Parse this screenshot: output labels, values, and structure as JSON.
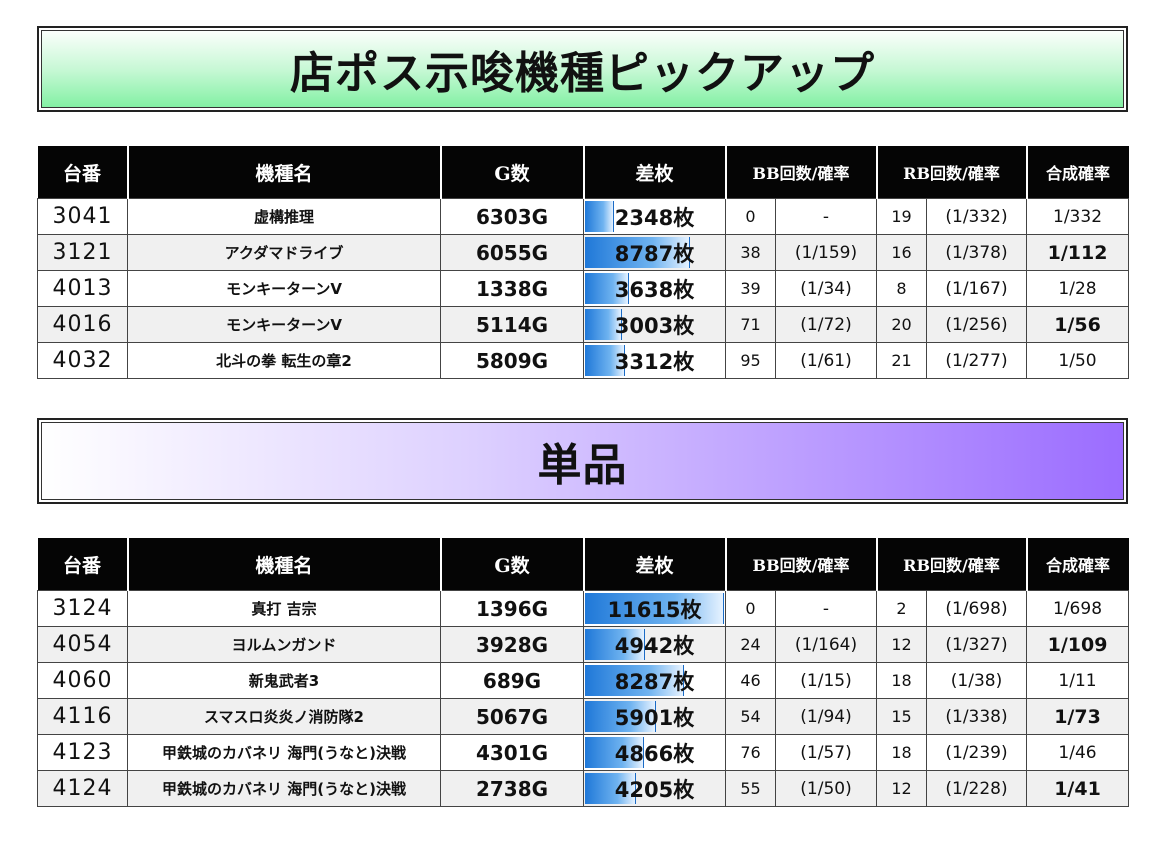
{
  "banner1": {
    "title": "店ポス示唆機種ピックアップ"
  },
  "banner2": {
    "title": "単品"
  },
  "headers": {
    "machine_no": "台番",
    "model": "機種名",
    "games": "G数",
    "diff": "差枚",
    "bb": "BB回数/確率",
    "rb": "RB回数/確率",
    "combined": "合成確率"
  },
  "colors": {
    "header_bg": "#050505",
    "bar": "#1f78d8",
    "banner1": "#7ef0a0",
    "banner2": "#9b6cff"
  },
  "table1": {
    "rows": [
      {
        "no": "3041",
        "model": "虚構推理",
        "games": "6303G",
        "diff": "2348枚",
        "diff_value": 2348,
        "bb": "0",
        "bb_prob": "-",
        "rb": "19",
        "rb_prob": "(1/332)",
        "combined": "1/332",
        "combined_bold": false
      },
      {
        "no": "3121",
        "model": "アクダマドライブ",
        "games": "6055G",
        "diff": "8787枚",
        "diff_value": 8787,
        "bb": "38",
        "bb_prob": "(1/159)",
        "rb": "16",
        "rb_prob": "(1/378)",
        "combined": "1/112",
        "combined_bold": true
      },
      {
        "no": "4013",
        "model": "モンキーターンV",
        "games": "1338G",
        "diff": "3638枚",
        "diff_value": 3638,
        "bb": "39",
        "bb_prob": "(1/34)",
        "rb": "8",
        "rb_prob": "(1/167)",
        "combined": "1/28",
        "combined_bold": false
      },
      {
        "no": "4016",
        "model": "モンキーターンV",
        "games": "5114G",
        "diff": "3003枚",
        "diff_value": 3003,
        "bb": "71",
        "bb_prob": "(1/72)",
        "rb": "20",
        "rb_prob": "(1/256)",
        "combined": "1/56",
        "combined_bold": true
      },
      {
        "no": "4032",
        "model": "北斗の拳 転生の章2",
        "games": "5809G",
        "diff": "3312枚",
        "diff_value": 3312,
        "bb": "95",
        "bb_prob": "(1/61)",
        "rb": "21",
        "rb_prob": "(1/277)",
        "combined": "1/50",
        "combined_bold": false
      }
    ]
  },
  "table2": {
    "rows": [
      {
        "no": "3124",
        "model": "真打 吉宗",
        "games": "1396G",
        "diff": "11615枚",
        "diff_value": 11615,
        "bb": "0",
        "bb_prob": "-",
        "rb": "2",
        "rb_prob": "(1/698)",
        "combined": "1/698",
        "combined_bold": false
      },
      {
        "no": "4054",
        "model": "ヨルムンガンド",
        "games": "3928G",
        "diff": "4942枚",
        "diff_value": 4942,
        "bb": "24",
        "bb_prob": "(1/164)",
        "rb": "12",
        "rb_prob": "(1/327)",
        "combined": "1/109",
        "combined_bold": true
      },
      {
        "no": "4060",
        "model": "新鬼武者3",
        "games": "689G",
        "diff": "8287枚",
        "diff_value": 8287,
        "bb": "46",
        "bb_prob": "(1/15)",
        "rb": "18",
        "rb_prob": "(1/38)",
        "combined": "1/11",
        "combined_bold": false
      },
      {
        "no": "4116",
        "model": "スマスロ炎炎ノ消防隊2",
        "games": "5067G",
        "diff": "5901枚",
        "diff_value": 5901,
        "bb": "54",
        "bb_prob": "(1/94)",
        "rb": "15",
        "rb_prob": "(1/338)",
        "combined": "1/73",
        "combined_bold": true
      },
      {
        "no": "4123",
        "model": "甲鉄城のカバネリ 海門(うなと)決戦",
        "games": "4301G",
        "diff": "4866枚",
        "diff_value": 4866,
        "bb": "76",
        "bb_prob": "(1/57)",
        "rb": "18",
        "rb_prob": "(1/239)",
        "combined": "1/46",
        "combined_bold": false
      },
      {
        "no": "4124",
        "model": "甲鉄城のカバネリ 海門(うなと)決戦",
        "games": "2738G",
        "diff": "4205枚",
        "diff_value": 4205,
        "bb": "55",
        "bb_prob": "(1/50)",
        "rb": "12",
        "rb_prob": "(1/228)",
        "combined": "1/41",
        "combined_bold": true
      }
    ]
  }
}
